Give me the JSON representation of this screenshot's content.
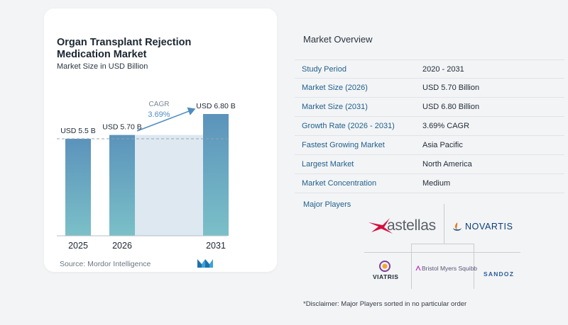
{
  "chart": {
    "title": "Organ Transplant Rejection Medication Market",
    "subtitle": "Market Size in USD Billion",
    "source": "Source:  Mordor Intelligence",
    "cagr_label": "CAGR",
    "cagr_value": "3.69%"
  },
  "chart_data": {
    "type": "bar",
    "title": "Organ Transplant Rejection Medication Market",
    "subtitle": "Market Size in USD Billion",
    "categories": [
      "2025",
      "2026",
      "2031"
    ],
    "values": [
      5.5,
      5.7,
      6.8
    ],
    "value_labels": [
      "USD 5.5 B",
      "USD 5.70 B",
      "USD 6.80 B"
    ],
    "annotation": {
      "label": "CAGR",
      "value": "3.69%"
    },
    "grid": false,
    "colors": {
      "bar_top": "#5b93bb",
      "bar_bottom": "#7bc0c8",
      "band": "#dde8f1",
      "accent": "#4f8cbf"
    }
  },
  "overview": {
    "title": "Market Overview",
    "rows": [
      {
        "label": "Study Period",
        "value": "2020 - 2031"
      },
      {
        "label": "Market Size (2026)",
        "value": "USD 5.70 Billion"
      },
      {
        "label": "Market Size (2031)",
        "value": "USD 6.80 Billion"
      },
      {
        "label": "Growth Rate (2026 - 2031)",
        "value": "3.69% CAGR"
      },
      {
        "label": "Fastest Growing Market",
        "value": "Asia Pacific"
      },
      {
        "label": "Largest Market",
        "value": "North America"
      },
      {
        "label": "Market Concentration",
        "value": "Medium"
      }
    ]
  },
  "players": {
    "title": "Major Players",
    "logos": {
      "astellas": "astellas",
      "novartis": "NOVARTIS",
      "viatris": "VIATRIS",
      "bms": "Bristol Myers Squibb",
      "sandoz": "SANDOZ"
    }
  },
  "disclaimer": "*Disclaimer: Major Players sorted in no particular order"
}
